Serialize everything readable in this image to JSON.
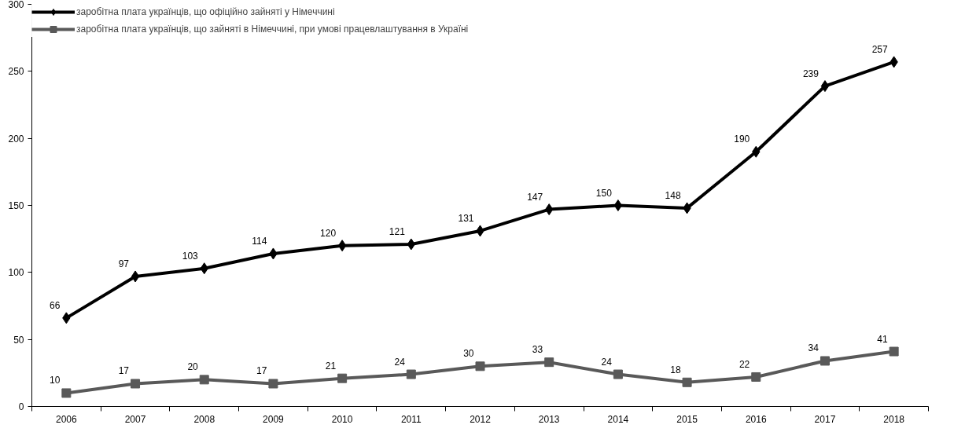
{
  "chart_data": {
    "type": "line",
    "categories": [
      "2006",
      "2007",
      "2008",
      "2009",
      "2010",
      "2011",
      "2012",
      "2013",
      "2014",
      "2015",
      "2016",
      "2017",
      "2018"
    ],
    "series": [
      {
        "name": "заробітна плата українців, що офіційно зайняті у Німеччині",
        "color": "#000000",
        "marker": "diamond",
        "values": [
          66,
          97,
          103,
          114,
          120,
          121,
          131,
          147,
          150,
          148,
          190,
          239,
          257
        ]
      },
      {
        "name": "заробітна плата українців, що зайняті в Німеччині, при умові працевлаштування в Україні",
        "color": "#595959",
        "marker": "square",
        "values": [
          10,
          17,
          20,
          17,
          21,
          24,
          30,
          33,
          24,
          18,
          22,
          34,
          41
        ]
      }
    ],
    "ylim": [
      0,
      300
    ],
    "yticks": [
      0,
      50,
      100,
      150,
      200,
      250,
      300
    ],
    "grid": false,
    "legend": "top",
    "data_labels": true,
    "line_style": "solid"
  }
}
